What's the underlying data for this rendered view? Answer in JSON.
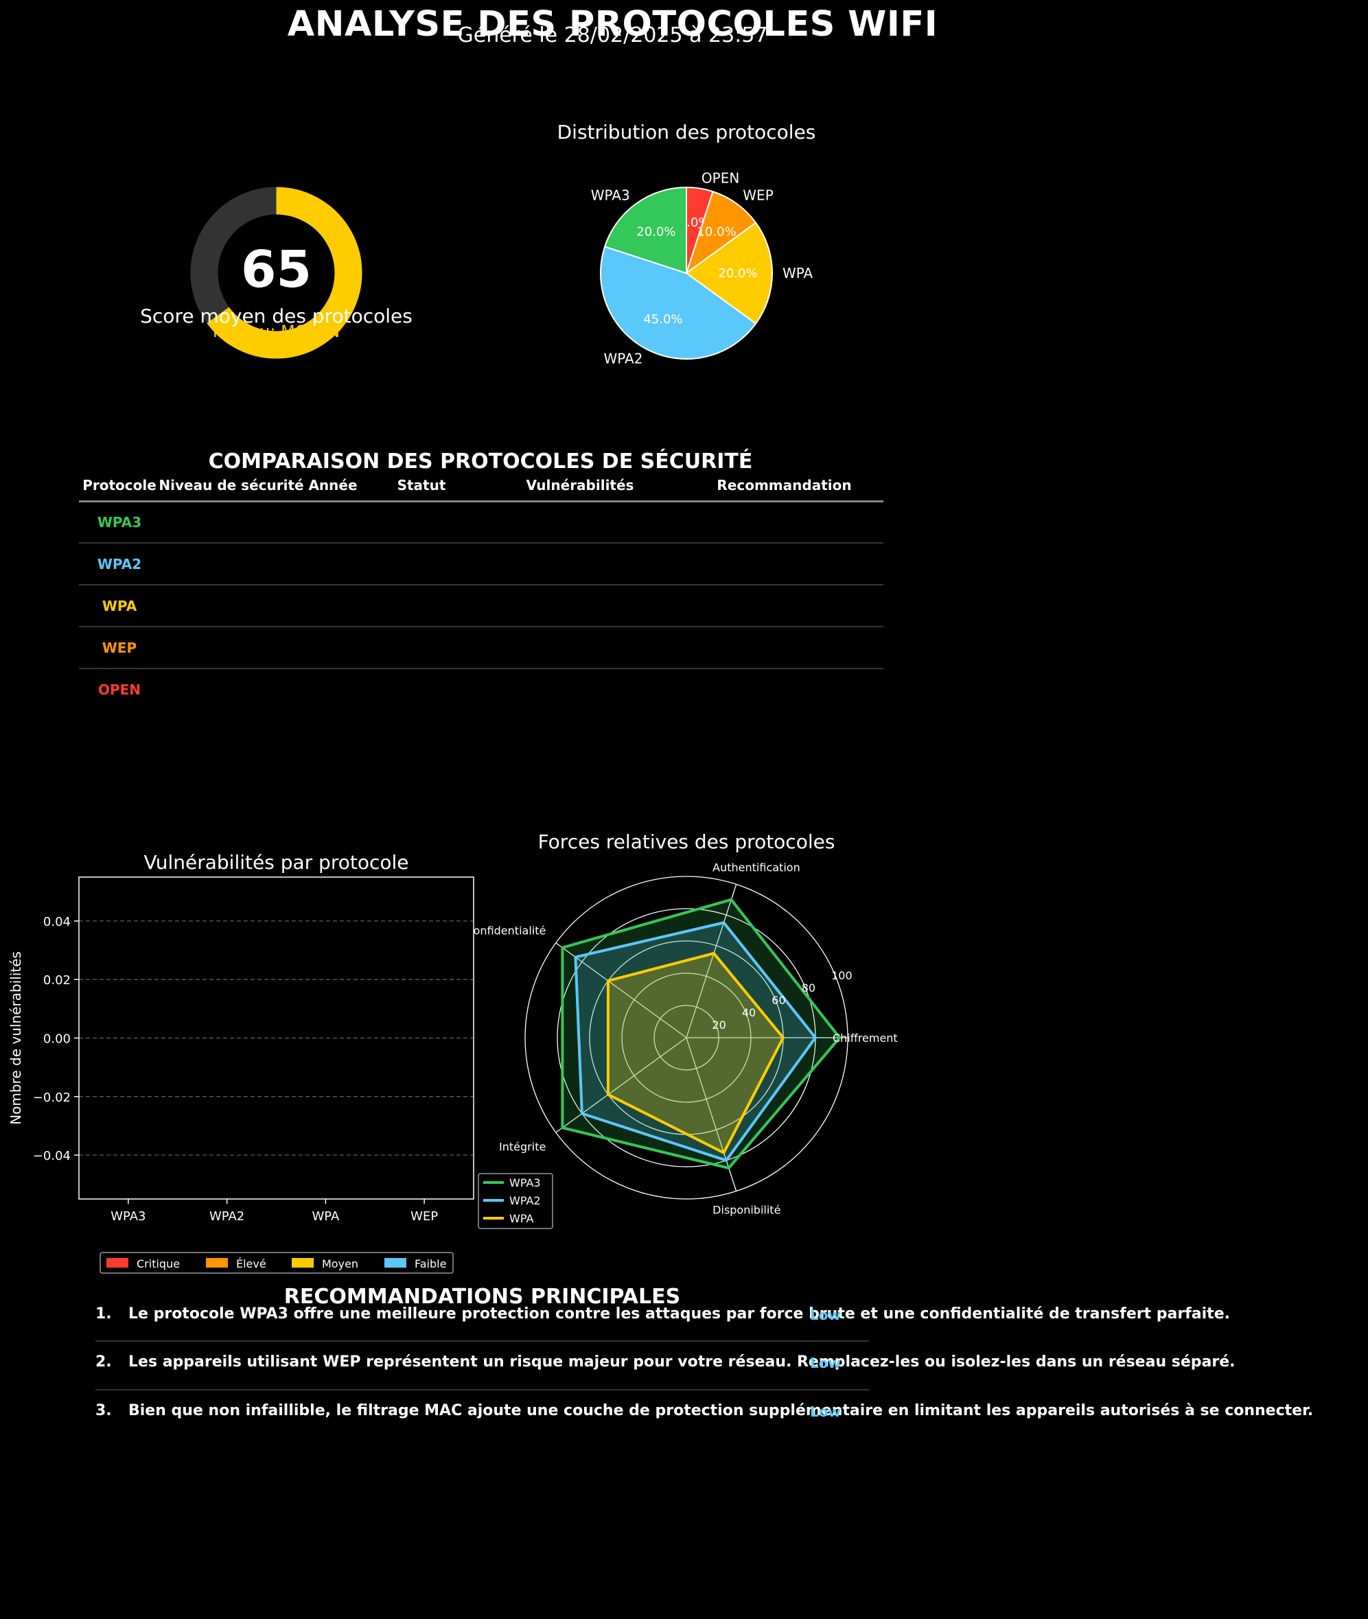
{
  "header": {
    "title": "ANALYSE DES PROTOCOLES WIFI",
    "subtitle": "Généré le 28/02/2025 à 23:57"
  },
  "score": {
    "value": "65",
    "max": 100,
    "caption": "Score moyen des protocoles",
    "level": "Niveau: MOYEN",
    "color": "#FFCC00",
    "track_color": "#333333"
  },
  "protocols": {
    "title": "COMPARAISON DES PROTOCOLES DE SÉCURITÉ",
    "headers": [
      "Protocole",
      "Niveau de sécurité",
      "Année",
      "Statut",
      "Vulnérabilités",
      "Recommandation"
    ],
    "rows": [
      {
        "name": "WPA3",
        "color": "#34C759"
      },
      {
        "name": "WPA2",
        "color": "#5AC8FA"
      },
      {
        "name": "WPA",
        "color": "#FFCC00"
      },
      {
        "name": "WEP",
        "color": "#FF9500"
      },
      {
        "name": "OPEN",
        "color": "#FF3B30"
      }
    ]
  },
  "recommendations": {
    "title": "RECOMMANDATIONS PRINCIPALES",
    "items": [
      {
        "num": "1.",
        "text": "Le protocole WPA3 offre une meilleure protection contre les attaques par force brute et une confidentialité de transfert parfaite.",
        "badge": "Low"
      },
      {
        "num": "2.",
        "text": "Les appareils utilisant WEP représentent un risque majeur pour votre réseau. Remplacez-les ou isolez-les dans un réseau séparé.",
        "badge": "Low"
      },
      {
        "num": "3.",
        "text": "Bien que non infaillible, le filtrage MAC ajoute une couche de protection supplémentaire en limitant les appareils autorisés à se connecter.",
        "badge": "Low"
      }
    ]
  },
  "chart_data": [
    {
      "type": "pie",
      "title": "Distribution des protocoles",
      "labels": [
        "OPEN",
        "WEP",
        "WPA",
        "WPA2",
        "WPA3"
      ],
      "values": [
        5.0,
        10.0,
        20.0,
        45.0,
        20.0
      ],
      "pct_labels": [
        "5.0%",
        "10.0%",
        "20.0%",
        "45.0%",
        "20.0%"
      ],
      "colors": [
        "#FF3B30",
        "#FF9500",
        "#FFCC00",
        "#5AC8FA",
        "#34C759"
      ]
    },
    {
      "type": "bar",
      "title": "Vulnérabilités par protocole",
      "ylabel": "Nombre de vulnérabilités",
      "categories": [
        "WPA3",
        "WPA2",
        "WPA",
        "WEP"
      ],
      "series": [
        {
          "name": "Critique",
          "color": "#FF3B30",
          "values": [
            0,
            0,
            0,
            0
          ]
        },
        {
          "name": "Élevé",
          "color": "#FF9500",
          "values": [
            0,
            0,
            0,
            0
          ]
        },
        {
          "name": "Moyen",
          "color": "#FFCC00",
          "values": [
            0,
            0,
            0,
            0
          ]
        },
        {
          "name": "Faible",
          "color": "#5AC8FA",
          "values": [
            0,
            0,
            0,
            0
          ]
        }
      ],
      "ylim": [
        -0.055,
        0.055
      ],
      "yticks": [
        -0.04,
        -0.02,
        0.0,
        0.02,
        0.04
      ],
      "ytick_labels": [
        "−0.04",
        "−0.02",
        "0.00",
        "0.02",
        "0.04"
      ],
      "grid": true,
      "legend": "bottom"
    },
    {
      "type": "radar",
      "title": "Forces relatives des protocoles",
      "axes": [
        "Chiffrement",
        "Authentification",
        "Confidentialité",
        "Intégrite",
        "Disponibilité"
      ],
      "rmax": 100,
      "rticks": [
        20,
        40,
        60,
        80,
        100
      ],
      "rtick_labels": [
        "20",
        "40",
        "60",
        "80",
        "100"
      ],
      "series": [
        {
          "name": "WPA3",
          "color": "#34C759",
          "values": [
            95,
            90,
            95,
            95,
            85
          ]
        },
        {
          "name": "WPA2",
          "color": "#5AC8FA",
          "values": [
            80,
            75,
            85,
            80,
            80
          ]
        },
        {
          "name": "WPA",
          "color": "#FFCC00",
          "values": [
            60,
            55,
            60,
            60,
            75
          ]
        }
      ],
      "legend": "bottom-left"
    }
  ]
}
